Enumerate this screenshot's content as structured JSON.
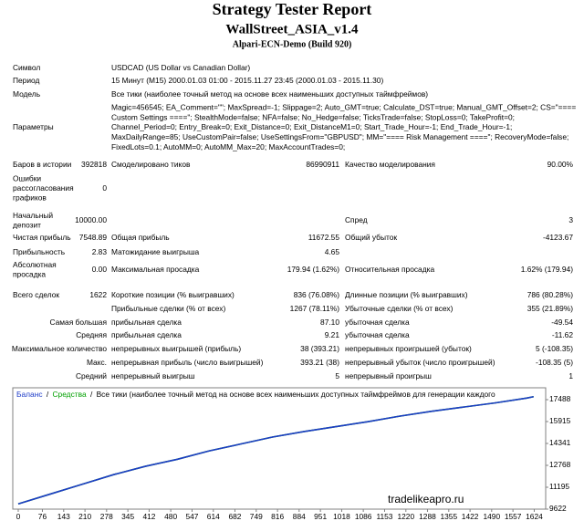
{
  "header": {
    "title": "Strategy Tester Report",
    "ea_name": "WallStreet_ASIA_v1.4",
    "server": "Alpari-ECN-Demo (Build 920)"
  },
  "rows": [
    {
      "label": "Символ",
      "text": "USDCAD (US Dollar vs Canadian Dollar)"
    },
    {
      "label": "Период",
      "text": "15 Минут (M15) 2000.01.03 01:00 - 2015.11.27 23:45 (2000.01.03 - 2015.11.30)"
    },
    {
      "label": "Модель",
      "text": "Все тики (наиболее точный метод на основе всех наименьших доступных таймфреймов)"
    },
    {
      "label": "Параметры",
      "lines": [
        "Magic=456545; EA_Comment=\"\"; MaxSpread=-1; Slippage=2; Auto_GMT=true; Calculate_DST=true; Manual_GMT_Offset=2; CS=\"====",
        "Custom Settings ====\"; StealthMode=false; NFA=false; No_Hedge=false; TicksTrade=false; StopLoss=0; TakeProfit=0;",
        "Channel_Period=0; Entry_Break=0; Exit_Distance=0; Exit_DistanceM1=0; Start_Trade_Hour=-1; End_Trade_Hour=-1;",
        "MaxDailyRange=85; UseCustomPair=false; UseSettingsFrom=\"GBPUSD\"; MM=\"==== Risk Management ====\"; RecoveryMode=false;",
        "FixedLots=0.1; AutoMM=0; AutoMM_Max=20; MaxAccountTrades=0;"
      ]
    },
    {
      "label": "Баров в истории",
      "value": "392818",
      "label2": "Смоделировано тиков",
      "value2": "86990911",
      "label3": "Качество моделирования",
      "value3": "90.00%"
    },
    {
      "label": [
        "Ошибки",
        "рассогласования",
        "графиков"
      ],
      "value": "0"
    },
    {
      "label": [
        "Начальный",
        "депозит"
      ],
      "value": "10000.00",
      "label3": "Спред",
      "value3": "3"
    },
    {
      "label": "Чистая прибыль",
      "value": "7548.89",
      "label2": "Общая прибыль",
      "value2": "11672.55",
      "label3": "Общий убыток",
      "value3": "-4123.67"
    },
    {
      "label": "Прибыльность",
      "value": "2.83",
      "label2": "Матожидание выигрыша",
      "value2": "4.65"
    },
    {
      "label": [
        "Абсолютная",
        "просадка"
      ],
      "value": "0.00",
      "label2": "Максимальная просадка",
      "value2": "179.94 (1.62%)",
      "label3": "Относительная просадка",
      "value3": "1.62% (179.94)"
    },
    {
      "label": "Всего сделок",
      "value": "1622",
      "label2": "Короткие позиции (% выигравших)",
      "value2": "836 (76.08%)",
      "label3": "Длинные позиции (% выигравших)",
      "value3": "786 (80.28%)"
    },
    {
      "label2": "Прибыльные сделки (% от всех)",
      "value2": "1267 (78.11%)",
      "label3": "Убыточные сделки (% от всех)",
      "value3": "355 (21.89%)"
    },
    {
      "label": "Самая большая",
      "label2": "прибыльная сделка",
      "value2": "87.10",
      "label3": "убыточная сделка",
      "value3": "-49.54"
    },
    {
      "label": "Средняя",
      "label2": "прибыльная сделка",
      "value2": "9.21",
      "label3": "убыточная сделка",
      "value3": "-11.62"
    },
    {
      "label": "Максимальное количество",
      "label2": "непрерывных выигрышей (прибыль)",
      "value2": "38 (393.21)",
      "label3": "непрерывных проигрышей (убыток)",
      "value3": "5 (-108.35)"
    },
    {
      "label": "Макс.",
      "label2": "непрерывная прибыль (число выигрышей)",
      "value2": "393.21 (38)",
      "label3": "непрерывный убыток (число проигрышей)",
      "value3": "-108.35 (5)"
    },
    {
      "label": "Средний",
      "label2": "непрерывный выигрыш",
      "value2": "5",
      "label3": "непрерывный проигрыш",
      "value3": "1"
    }
  ],
  "chart_data": {
    "type": "line",
    "subtitle": "Все тики (наиболее точный метод на основе всех наименьших доступных таймфреймов для генерации каждого",
    "legend_separator": "/",
    "watermark": "tradelikeapro.ru",
    "x": [
      0,
      100,
      200,
      300,
      400,
      500,
      600,
      700,
      800,
      900,
      1000,
      1100,
      1200,
      1300,
      1400,
      1500,
      1600,
      1622
    ],
    "series": [
      {
        "name": "Средства",
        "color": "#00a000",
        "values": [
          10000,
          10700,
          11400,
          12100,
          12700,
          13200,
          13800,
          14300,
          14800,
          15200,
          15550,
          15900,
          16300,
          16650,
          16950,
          17250,
          17600,
          17700
        ]
      },
      {
        "name": "Баланс",
        "color": "#1e3cc8",
        "values": [
          10000,
          10700,
          11400,
          12100,
          12700,
          13200,
          13800,
          14300,
          14800,
          15200,
          15550,
          15900,
          16300,
          16650,
          16950,
          17250,
          17600,
          17700
        ]
      }
    ],
    "xlim": [
      0,
      1660
    ],
    "ylim": [
      9622,
      18274
    ],
    "xticks": [
      0,
      76,
      143,
      210,
      278,
      345,
      412,
      480,
      547,
      614,
      682,
      749,
      816,
      884,
      951,
      1018,
      1086,
      1153,
      1220,
      1288,
      1355,
      1422,
      1490,
      1557,
      1624
    ],
    "yticks": [
      9622,
      11195,
      12768,
      14341,
      15915,
      17488
    ]
  }
}
